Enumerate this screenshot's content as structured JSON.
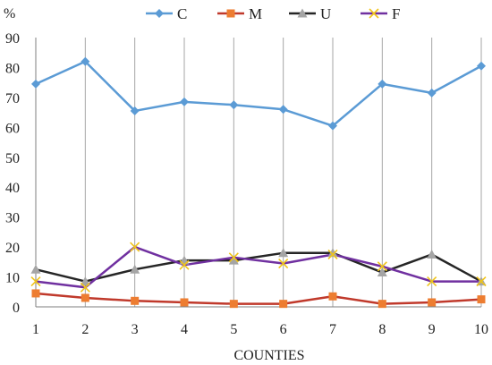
{
  "chart_data": {
    "type": "line",
    "ylabel": "%",
    "xlabel": "COUNTIES",
    "ylim": [
      0,
      90
    ],
    "yticks": [
      0,
      10,
      20,
      30,
      40,
      50,
      60,
      70,
      80,
      90
    ],
    "categories": [
      "1",
      "2",
      "3",
      "4",
      "5",
      "6",
      "7",
      "8",
      "9",
      "10"
    ],
    "legend_position": "top-center",
    "grid": "vertical",
    "series": [
      {
        "name": "C",
        "marker": "diamond",
        "color": "#5b9bd5",
        "values": [
          74.5,
          82,
          65.5,
          68.5,
          67.5,
          66,
          60.5,
          74.5,
          71.5,
          80.5
        ]
      },
      {
        "name": "M",
        "marker": "square",
        "color": "#c0392b",
        "values": [
          4.5,
          3,
          2,
          1.5,
          1,
          1,
          3.5,
          1,
          1.5,
          2.5
        ]
      },
      {
        "name": "U",
        "marker": "triangle",
        "color": "#262626",
        "values": [
          12.5,
          8.5,
          12.5,
          15.5,
          15.5,
          18,
          18,
          11.5,
          17.5,
          8.5
        ]
      },
      {
        "name": "F",
        "marker": "x",
        "color": "#7030a0",
        "values": [
          8.5,
          6.5,
          20,
          14,
          16.5,
          14.5,
          17.5,
          13.5,
          8.5,
          8.5
        ]
      }
    ]
  }
}
